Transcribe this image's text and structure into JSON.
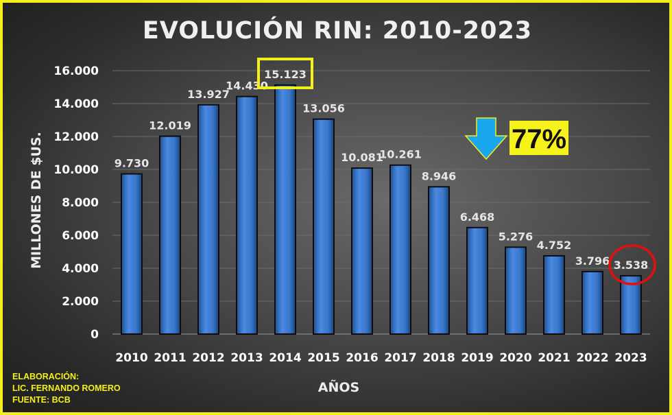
{
  "chart_data": {
    "type": "bar",
    "title": "EVOLUCIÓN RIN: 2010-2023",
    "xlabel": "AÑOS",
    "ylabel": "MILLONES DE $US.",
    "categories": [
      "2010",
      "2011",
      "2012",
      "2013",
      "2014",
      "2015",
      "2016",
      "2017",
      "2018",
      "2019",
      "2020",
      "2021",
      "2022",
      "2023"
    ],
    "values": [
      9730,
      12019,
      13927,
      14430,
      15123,
      13056,
      10081,
      10261,
      8946,
      6468,
      5276,
      4752,
      3796,
      3538
    ],
    "value_labels": [
      "9.730",
      "12.019",
      "13.927",
      "14.430",
      "15.123",
      "13.056",
      "10.081",
      "10.261",
      "8.946",
      "6.468",
      "5.276",
      "4.752",
      "3.796",
      "3.538"
    ],
    "ylim": [
      0,
      16000
    ],
    "yticks": [
      0,
      2000,
      4000,
      6000,
      8000,
      10000,
      12000,
      14000,
      16000
    ],
    "ytick_labels": [
      "0",
      "2.000",
      "4.000",
      "6.000",
      "8.000",
      "10.000",
      "12.000",
      "14.000",
      "16.000"
    ],
    "grid": true,
    "bar_color": "#3d7bd0",
    "annotations": {
      "max_box_color": "#f5ef1a",
      "last_circle_color": "#e01010",
      "decline_arrow_color": "#1aa7ec",
      "decline_label": "77%",
      "decline_label_background": "#f8f21c"
    }
  },
  "credits": {
    "line1": "ELABORACIÓN:",
    "line2": "LIC. FERNANDO ROMERO",
    "line3": "FUENTE: BCB"
  },
  "colors": {
    "frame_border": "#f2ef1c",
    "background": "#4b4b4b",
    "text": "#ffffff"
  }
}
